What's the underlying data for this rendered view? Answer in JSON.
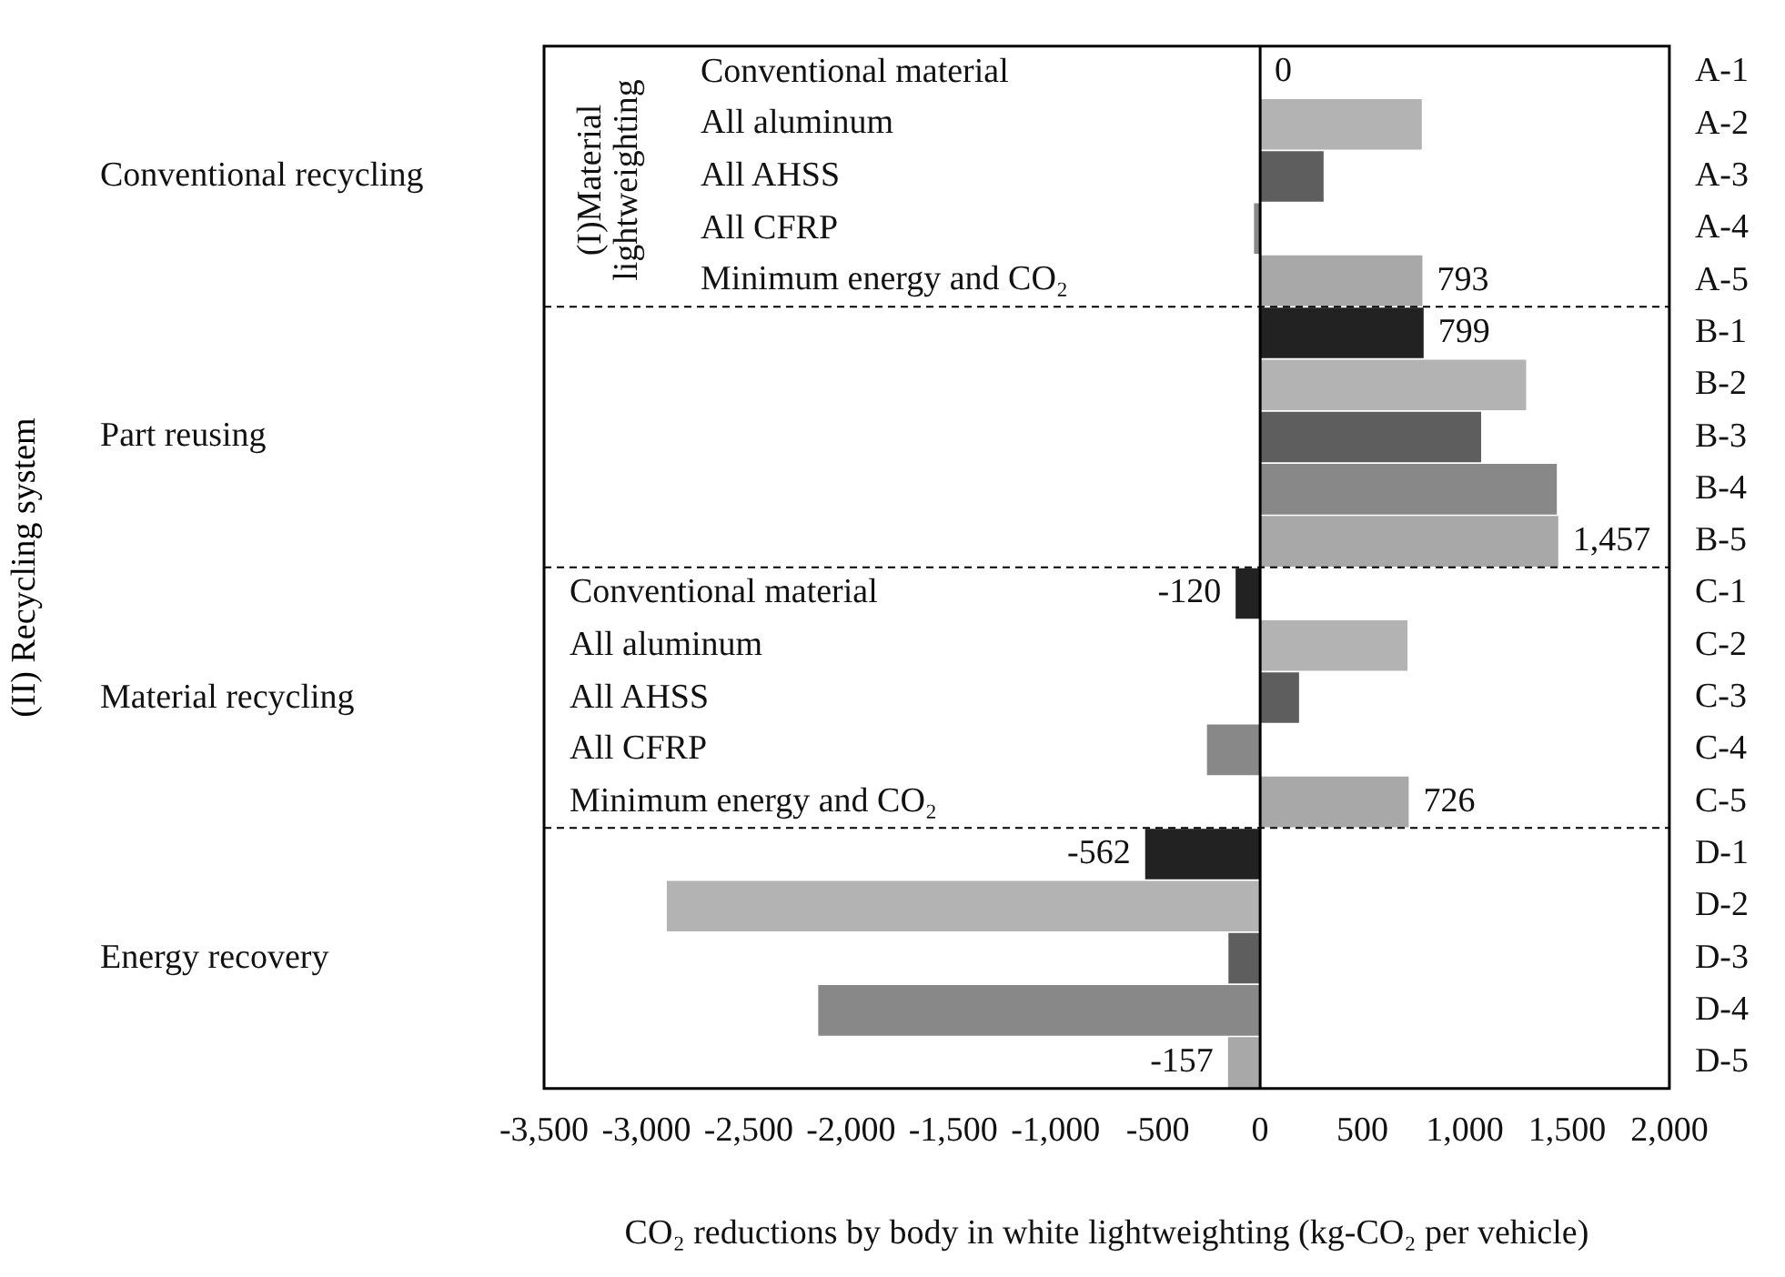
{
  "chart_data": {
    "type": "bar",
    "orientation": "horizontal",
    "xlabel": "CO₂ reductions by body in white lightweighting (kg-CO₂ per vehicle)",
    "categories": [
      "A-1",
      "A-2",
      "A-3",
      "A-4",
      "A-5",
      "B-1",
      "B-2",
      "B-3",
      "B-4",
      "B-5",
      "C-1",
      "C-2",
      "C-3",
      "C-4",
      "C-5",
      "D-1",
      "D-2",
      "D-3",
      "D-4",
      "D-5"
    ],
    "values": [
      0,
      790,
      310,
      -30,
      793,
      799,
      1300,
      1080,
      1450,
      1457,
      -120,
      720,
      190,
      -260,
      726,
      -562,
      -2900,
      -155,
      -2160,
      -157
    ],
    "colors": [
      "#222222",
      "#b3b3b3",
      "#5e5e5e",
      "#888888",
      "#a8a8a8",
      "#222222",
      "#b3b3b3",
      "#5e5e5e",
      "#888888",
      "#a8a8a8",
      "#222222",
      "#b3b3b3",
      "#5e5e5e",
      "#888888",
      "#a8a8a8",
      "#222222",
      "#b3b3b3",
      "#5e5e5e",
      "#888888",
      "#a8a8a8"
    ],
    "value_labels": [
      "0",
      null,
      null,
      null,
      "793",
      "799",
      null,
      null,
      null,
      "1,457",
      "-120",
      null,
      null,
      null,
      "726",
      "-562",
      null,
      null,
      null,
      "-157"
    ],
    "xlim": [
      -3500,
      2000
    ],
    "xticks": [
      {
        "value": -3500,
        "label": "-3,500"
      },
      {
        "value": -3000,
        "label": "-3,000"
      },
      {
        "value": -2500,
        "label": "-2,500"
      },
      {
        "value": -2000,
        "label": "-2,000"
      },
      {
        "value": -1500,
        "label": "-1,500"
      },
      {
        "value": -1000,
        "label": "-1,000"
      },
      -500,
      0,
      500,
      {
        "value": 1000,
        "label": "1,000"
      },
      {
        "value": 1500,
        "label": "1,500"
      },
      {
        "value": 2000,
        "label": "2,000"
      }
    ],
    "ref_lines": [
      {
        "axis": "x",
        "value": 0,
        "color": "#000000"
      }
    ],
    "grid": false,
    "legend": false,
    "annotations": [
      "Conventional recycling",
      "Part reusing",
      "Material recycling",
      "Energy recovery",
      "(I)Material lightweighting",
      "Conventional material",
      "All aluminum",
      "All AHSS",
      "All CFRP",
      "Minimum energy and CO₂",
      "Conventional material",
      "All aluminum",
      "All AHSS",
      "All CFRP",
      "Minimum energy and CO₂",
      "(II) Recycling system"
    ]
  }
}
